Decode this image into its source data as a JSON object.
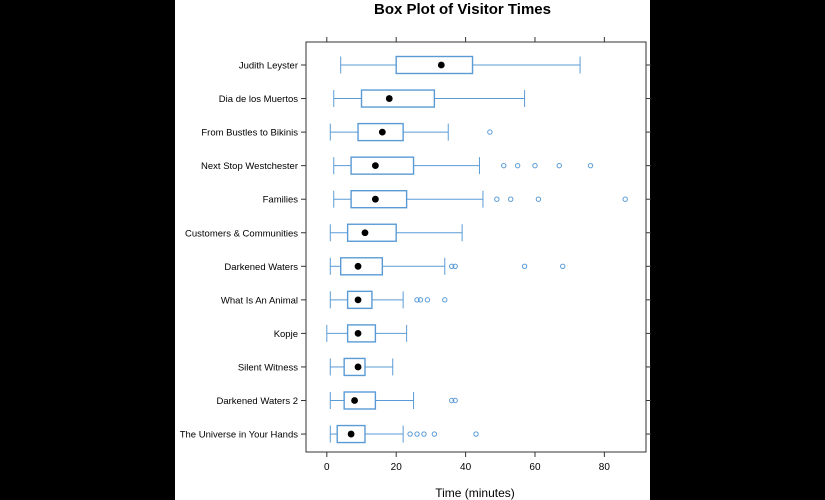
{
  "chart_data": {
    "type": "boxplot",
    "title": "Box Plot of Visitor Times",
    "xlabel": "Time (minutes)",
    "ylabel": "",
    "xlim": [
      -6,
      92
    ],
    "x_ticks": [
      0,
      20,
      40,
      60,
      80
    ],
    "categories": [
      "Judith Leyster",
      "Dia de los Muertos",
      "From Bustles to Bikinis",
      "Next Stop Westchester",
      "Families",
      "Customers & Communities",
      "Darkened Waters",
      "What Is An Animal",
      "Kopje",
      "Silent Witness",
      "Darkened Waters 2",
      "The Universe in Your Hands"
    ],
    "boxes": [
      {
        "min": 4,
        "q1": 20,
        "median": 33,
        "q3": 42,
        "max": 73,
        "outliers": []
      },
      {
        "min": 2,
        "q1": 10,
        "median": 18,
        "q3": 31,
        "max": 57,
        "outliers": []
      },
      {
        "min": 1,
        "q1": 9,
        "median": 16,
        "q3": 22,
        "max": 35,
        "outliers": [
          47
        ]
      },
      {
        "min": 2,
        "q1": 7,
        "median": 14,
        "q3": 25,
        "max": 44,
        "outliers": [
          51,
          55,
          60,
          67,
          76
        ]
      },
      {
        "min": 2,
        "q1": 7,
        "median": 14,
        "q3": 23,
        "max": 45,
        "outliers": [
          49,
          53,
          61,
          86
        ]
      },
      {
        "min": 1,
        "q1": 6,
        "median": 11,
        "q3": 20,
        "max": 39,
        "outliers": []
      },
      {
        "min": 1,
        "q1": 4,
        "median": 9,
        "q3": 16,
        "max": 34,
        "outliers": [
          36,
          37,
          57,
          68
        ]
      },
      {
        "min": 1,
        "q1": 6,
        "median": 9,
        "q3": 13,
        "max": 22,
        "outliers": [
          26,
          27,
          29,
          34
        ]
      },
      {
        "min": 0,
        "q1": 6,
        "median": 9,
        "q3": 14,
        "max": 23,
        "outliers": []
      },
      {
        "min": 1,
        "q1": 5,
        "median": 9,
        "q3": 11,
        "max": 19,
        "outliers": []
      },
      {
        "min": 1,
        "q1": 5,
        "median": 8,
        "q3": 14,
        "max": 25,
        "outliers": [
          36,
          37
        ]
      },
      {
        "min": 1,
        "q1": 3,
        "median": 7,
        "q3": 11,
        "max": 22,
        "outliers": [
          24,
          26,
          28,
          31,
          43
        ]
      }
    ],
    "colors": {
      "box": "#5b9bd5",
      "median_dot": "#000000",
      "frame": "#333333"
    },
    "grid": false,
    "legend": "none"
  }
}
